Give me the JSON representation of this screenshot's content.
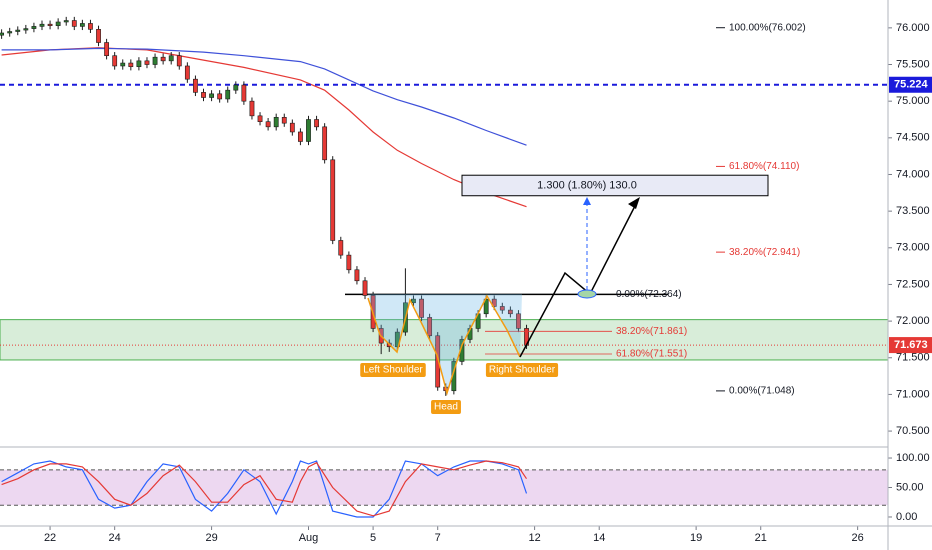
{
  "chart_data": {
    "type": "candlestick",
    "xlim": [
      -1.55,
      25.94
    ],
    "ylim": [
      70.31,
      76.38
    ],
    "xticks": [
      {
        "value": 0,
        "label": "22"
      },
      {
        "value": 2,
        "label": "24"
      },
      {
        "value": 5,
        "label": "29"
      },
      {
        "value": 8,
        "label": "Aug"
      },
      {
        "value": 10,
        "label": "5"
      },
      {
        "value": 12,
        "label": "7"
      },
      {
        "value": 15,
        "label": "12"
      },
      {
        "value": 17,
        "label": "14"
      },
      {
        "value": 20,
        "label": "19"
      },
      {
        "value": 22,
        "label": "21"
      },
      {
        "value": 25,
        "label": "26"
      }
    ],
    "yticks": [
      {
        "value": 76,
        "label": "76.000"
      },
      {
        "value": 75.5,
        "label": "75.500"
      },
      {
        "value": 75,
        "label": "75.000"
      },
      {
        "value": 74.5,
        "label": "74.500"
      },
      {
        "value": 74,
        "label": "74.000"
      },
      {
        "value": 73.5,
        "label": "73.500"
      },
      {
        "value": 73,
        "label": "73.000"
      },
      {
        "value": 72.5,
        "label": "72.500"
      },
      {
        "value": 72,
        "label": "72.000"
      },
      {
        "value": 71.5,
        "label": "71.500"
      },
      {
        "value": 71,
        "label": "71.000"
      },
      {
        "value": 70.5,
        "label": "70.500"
      }
    ],
    "grid": false,
    "up_color": "#2e7d32",
    "down_color": "#e53935",
    "candles": {
      "x": [
        -1.5,
        -1.25,
        -1,
        -0.75,
        -0.5,
        -0.25,
        0,
        0.25,
        0.5,
        0.75,
        1,
        1.25,
        1.5,
        1.75,
        2,
        2.25,
        2.5,
        2.75,
        3,
        3.25,
        3.5,
        3.75,
        4,
        4.25,
        4.5,
        4.75,
        5,
        5.25,
        5.5,
        5.75,
        6,
        6.25,
        6.5,
        6.75,
        7,
        7.25,
        7.5,
        7.75,
        8,
        8.25,
        8.5,
        8.75,
        9,
        9.25,
        9.5,
        9.75,
        10,
        10.25,
        10.5,
        10.75,
        11,
        11.25,
        11.5,
        11.75,
        12,
        12.25,
        12.5,
        12.75,
        13,
        13.25,
        13.5,
        13.75,
        14,
        14.25,
        14.5,
        14.75
      ],
      "open": [
        75.9,
        75.93,
        75.95,
        75.97,
        75.99,
        76.02,
        76.05,
        76.03,
        76.08,
        76.1,
        76.02,
        76.06,
        75.98,
        75.8,
        75.62,
        75.48,
        75.52,
        75.47,
        75.55,
        75.5,
        75.6,
        75.55,
        75.62,
        75.48,
        75.3,
        75.12,
        75.05,
        75.1,
        75.03,
        75.15,
        75.22,
        75.0,
        74.8,
        74.72,
        74.65,
        74.78,
        74.7,
        74.58,
        74.45,
        74.75,
        74.65,
        74.2,
        73.1,
        72.9,
        72.7,
        72.55,
        72.35,
        71.9,
        71.7,
        71.65,
        71.85,
        72.25,
        72.3,
        72.05,
        71.8,
        71.1,
        71.05,
        71.45,
        71.75,
        71.9,
        72.1,
        72.3,
        72.2,
        72.15,
        72.1,
        71.9
      ],
      "high": [
        75.98,
        76.0,
        76.02,
        76.04,
        76.07,
        76.1,
        76.1,
        76.13,
        76.15,
        76.15,
        76.11,
        76.11,
        76.03,
        75.85,
        75.67,
        75.57,
        75.57,
        75.6,
        75.6,
        75.65,
        75.65,
        75.67,
        75.67,
        75.53,
        75.35,
        75.17,
        75.15,
        75.15,
        75.2,
        75.27,
        75.27,
        75.05,
        74.85,
        74.77,
        74.83,
        74.83,
        74.75,
        74.63,
        74.8,
        74.8,
        74.7,
        74.25,
        73.15,
        72.95,
        72.75,
        72.6,
        72.4,
        71.95,
        71.75,
        71.9,
        72.72,
        72.35,
        72.35,
        72.1,
        71.85,
        71.15,
        71.5,
        71.8,
        71.95,
        72.15,
        72.35,
        72.35,
        72.25,
        72.2,
        72.15,
        71.95
      ],
      "low": [
        75.85,
        75.88,
        75.9,
        75.92,
        75.94,
        75.97,
        75.98,
        75.98,
        76.03,
        75.97,
        75.97,
        75.93,
        75.75,
        75.57,
        75.43,
        75.43,
        75.42,
        75.42,
        75.45,
        75.45,
        75.5,
        75.5,
        75.43,
        75.25,
        75.07,
        75.0,
        75.0,
        74.98,
        74.98,
        75.1,
        74.95,
        74.75,
        74.67,
        74.6,
        74.6,
        74.65,
        74.53,
        74.4,
        74.4,
        74.6,
        74.15,
        73.05,
        72.85,
        72.65,
        72.5,
        72.3,
        71.85,
        71.55,
        71.58,
        71.6,
        71.8,
        72.2,
        72.0,
        71.75,
        71.05,
        70.98,
        71.0,
        71.4,
        71.7,
        71.85,
        72.05,
        72.15,
        72.1,
        72.05,
        71.85,
        71.62
      ],
      "close": [
        75.93,
        75.95,
        75.97,
        75.99,
        76.02,
        76.05,
        76.03,
        76.08,
        76.1,
        76.02,
        76.06,
        75.98,
        75.8,
        75.62,
        75.48,
        75.52,
        75.47,
        75.55,
        75.5,
        75.6,
        75.55,
        75.62,
        75.48,
        75.3,
        75.12,
        75.05,
        75.1,
        75.03,
        75.15,
        75.22,
        75.0,
        74.8,
        74.72,
        74.65,
        74.78,
        74.7,
        74.58,
        74.45,
        74.75,
        74.65,
        74.2,
        73.1,
        72.9,
        72.7,
        72.55,
        72.35,
        71.9,
        71.7,
        71.65,
        71.85,
        72.25,
        72.3,
        72.05,
        71.8,
        71.1,
        71.05,
        71.45,
        71.75,
        71.9,
        72.1,
        72.3,
        72.2,
        72.15,
        72.1,
        71.9,
        71.67
      ]
    },
    "ma": [
      {
        "color": "#e53935",
        "x": [
          -1.5,
          0,
          1.5,
          3,
          4.75,
          6,
          7.75,
          8.5,
          9.25,
          10,
          10.75,
          11.5,
          12.5,
          13.5,
          14.75
        ],
        "values": [
          75.63,
          75.7,
          75.73,
          75.7,
          75.56,
          75.46,
          75.29,
          75.15,
          74.88,
          74.58,
          74.33,
          74.15,
          73.93,
          73.75,
          73.56
        ]
      },
      {
        "color": "#3f51d9",
        "x": [
          -1.5,
          0,
          1.5,
          3,
          4.75,
          6,
          7.75,
          8.5,
          9.25,
          10,
          10.75,
          11.5,
          12.5,
          13.5,
          14.75
        ],
        "values": [
          75.7,
          75.7,
          75.72,
          75.71,
          75.67,
          75.62,
          75.54,
          75.44,
          75.29,
          75.14,
          75.02,
          74.92,
          74.77,
          74.6,
          74.4
        ]
      }
    ],
    "price_lines": [
      {
        "value": 75.224,
        "color": "#1a1adb"
      },
      {
        "value": 71.673,
        "color": "#e53935"
      }
    ],
    "zone": {
      "top": 72.02,
      "bottom": 71.47,
      "color": "#4caf50"
    },
    "neckline": 72.364,
    "fib_outer": [
      {
        "value": 76.002,
        "label": "100.00%(76.002)",
        "color": "#131722"
      },
      {
        "value": 74.11,
        "label": "61.80%(74.110)",
        "color": "#e53935"
      },
      {
        "value": 72.941,
        "label": "38.20%(72.941)",
        "color": "#e53935"
      },
      {
        "value": 71.048,
        "label": "0.00%(71.048)",
        "color": "#131722"
      }
    ],
    "fib_inner": [
      {
        "value": 72.364,
        "label": "0.00%(72.364)",
        "color": "#131722"
      },
      {
        "value": 71.861,
        "label": "38.20%(71.861)",
        "color": "#e53935"
      },
      {
        "value": 71.551,
        "label": "61.80%(71.551)",
        "color": "#e53935"
      }
    ],
    "target_box": {
      "top": 73.99,
      "bottom": 73.71,
      "label": "1.300 (1.80%) 130.0"
    },
    "annotations": [
      "Left Shoulder",
      "Head",
      "Right Shoulder"
    ],
    "stochastic": {
      "ylim": [
        -13.6,
        117
      ],
      "yticks": [
        {
          "value": 100,
          "label": "100.00"
        },
        {
          "value": 50,
          "label": "50.00"
        },
        {
          "value": 0,
          "label": "0.00"
        }
      ],
      "levels": [
        80,
        20
      ],
      "x": [
        -1.5,
        -1,
        -0.5,
        0,
        0.5,
        1,
        1.5,
        2,
        2.5,
        3,
        3.5,
        4,
        4.5,
        5,
        5.5,
        6,
        6.5,
        7,
        7.5,
        7.75,
        8,
        8.25,
        8.75,
        9.5,
        10,
        10.5,
        11,
        11.5,
        12,
        12.5,
        13,
        13.5,
        14,
        14.5,
        14.75
      ],
      "series": [
        {
          "color": "#2962ff",
          "values": [
            60,
            75,
            90,
            95,
            85,
            80,
            30,
            15,
            20,
            60,
            90,
            85,
            30,
            10,
            40,
            80,
            60,
            5,
            60,
            95,
            90,
            95,
            10,
            0,
            0,
            30,
            95,
            90,
            70,
            85,
            95,
            95,
            90,
            80,
            40
          ]
        },
        {
          "color": "#e53935",
          "values": [
            55,
            65,
            80,
            90,
            90,
            85,
            60,
            30,
            20,
            40,
            70,
            88,
            60,
            25,
            25,
            55,
            70,
            30,
            25,
            60,
            85,
            92,
            50,
            10,
            2,
            10,
            60,
            90,
            85,
            80,
            88,
            95,
            92,
            85,
            65
          ]
        }
      ]
    }
  }
}
